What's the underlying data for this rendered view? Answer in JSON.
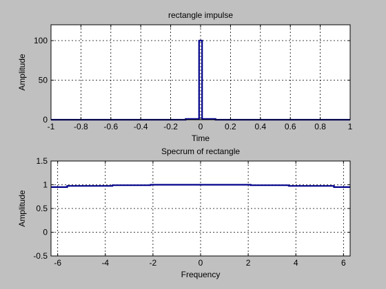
{
  "window": {
    "background": "#c0c0c0"
  },
  "chart_data": [
    {
      "type": "line",
      "title": "rectangle impulse",
      "xlabel": "Time",
      "ylabel": "Amplitude",
      "xlim": [
        -1,
        1
      ],
      "ylim": [
        0,
        120
      ],
      "xticks": [
        -1,
        -0.8,
        -0.6,
        -0.4,
        -0.2,
        0,
        0.2,
        0.4,
        0.6,
        0.8,
        1
      ],
      "xtick_labels": [
        "-1",
        "-0.8",
        "-0.6",
        "-0.4",
        "-0.2",
        "0",
        "0.2",
        "0.4",
        "0.6",
        "0.8",
        "1"
      ],
      "yticks": [
        0,
        50,
        100
      ],
      "ytick_labels": [
        "0",
        "50",
        "100"
      ],
      "grid": true,
      "line_color": "#00008b",
      "series": [
        {
          "x": [
            -1,
            -0.1,
            -0.1,
            -0.01,
            -0.01,
            0.01,
            0.01,
            0.1,
            0.1,
            1
          ],
          "y": [
            0,
            0,
            1,
            1,
            100,
            100,
            1,
            1,
            0,
            0
          ]
        }
      ]
    },
    {
      "type": "line",
      "title": "Specrum of rectangle",
      "xlabel": "Frequency",
      "ylabel": "Amplitude",
      "xlim": [
        -6.28,
        6.28
      ],
      "ylim": [
        -0.5,
        1.5
      ],
      "xticks": [
        -6,
        -4,
        -2,
        0,
        2,
        4,
        6
      ],
      "xtick_labels": [
        "-6",
        "-4",
        "-2",
        "0",
        "2",
        "4",
        "6"
      ],
      "yticks": [
        -0.5,
        0,
        0.5,
        1,
        1.5
      ],
      "ytick_labels": [
        "-0.5",
        "0",
        "0.5",
        "1",
        "1.5"
      ],
      "grid": true,
      "line_color": "#00008b",
      "series": [
        {
          "x": [
            -6.28,
            -5.6,
            -5.6,
            -3.7,
            -3.7,
            -2.1,
            -2.1,
            2.1,
            2.1,
            3.7,
            3.7,
            5.6,
            5.6,
            6.28
          ],
          "y": [
            0.95,
            0.95,
            0.975,
            0.975,
            0.99,
            0.99,
            1.0,
            1.0,
            0.99,
            0.99,
            0.975,
            0.975,
            0.95,
            0.95
          ]
        }
      ]
    }
  ]
}
